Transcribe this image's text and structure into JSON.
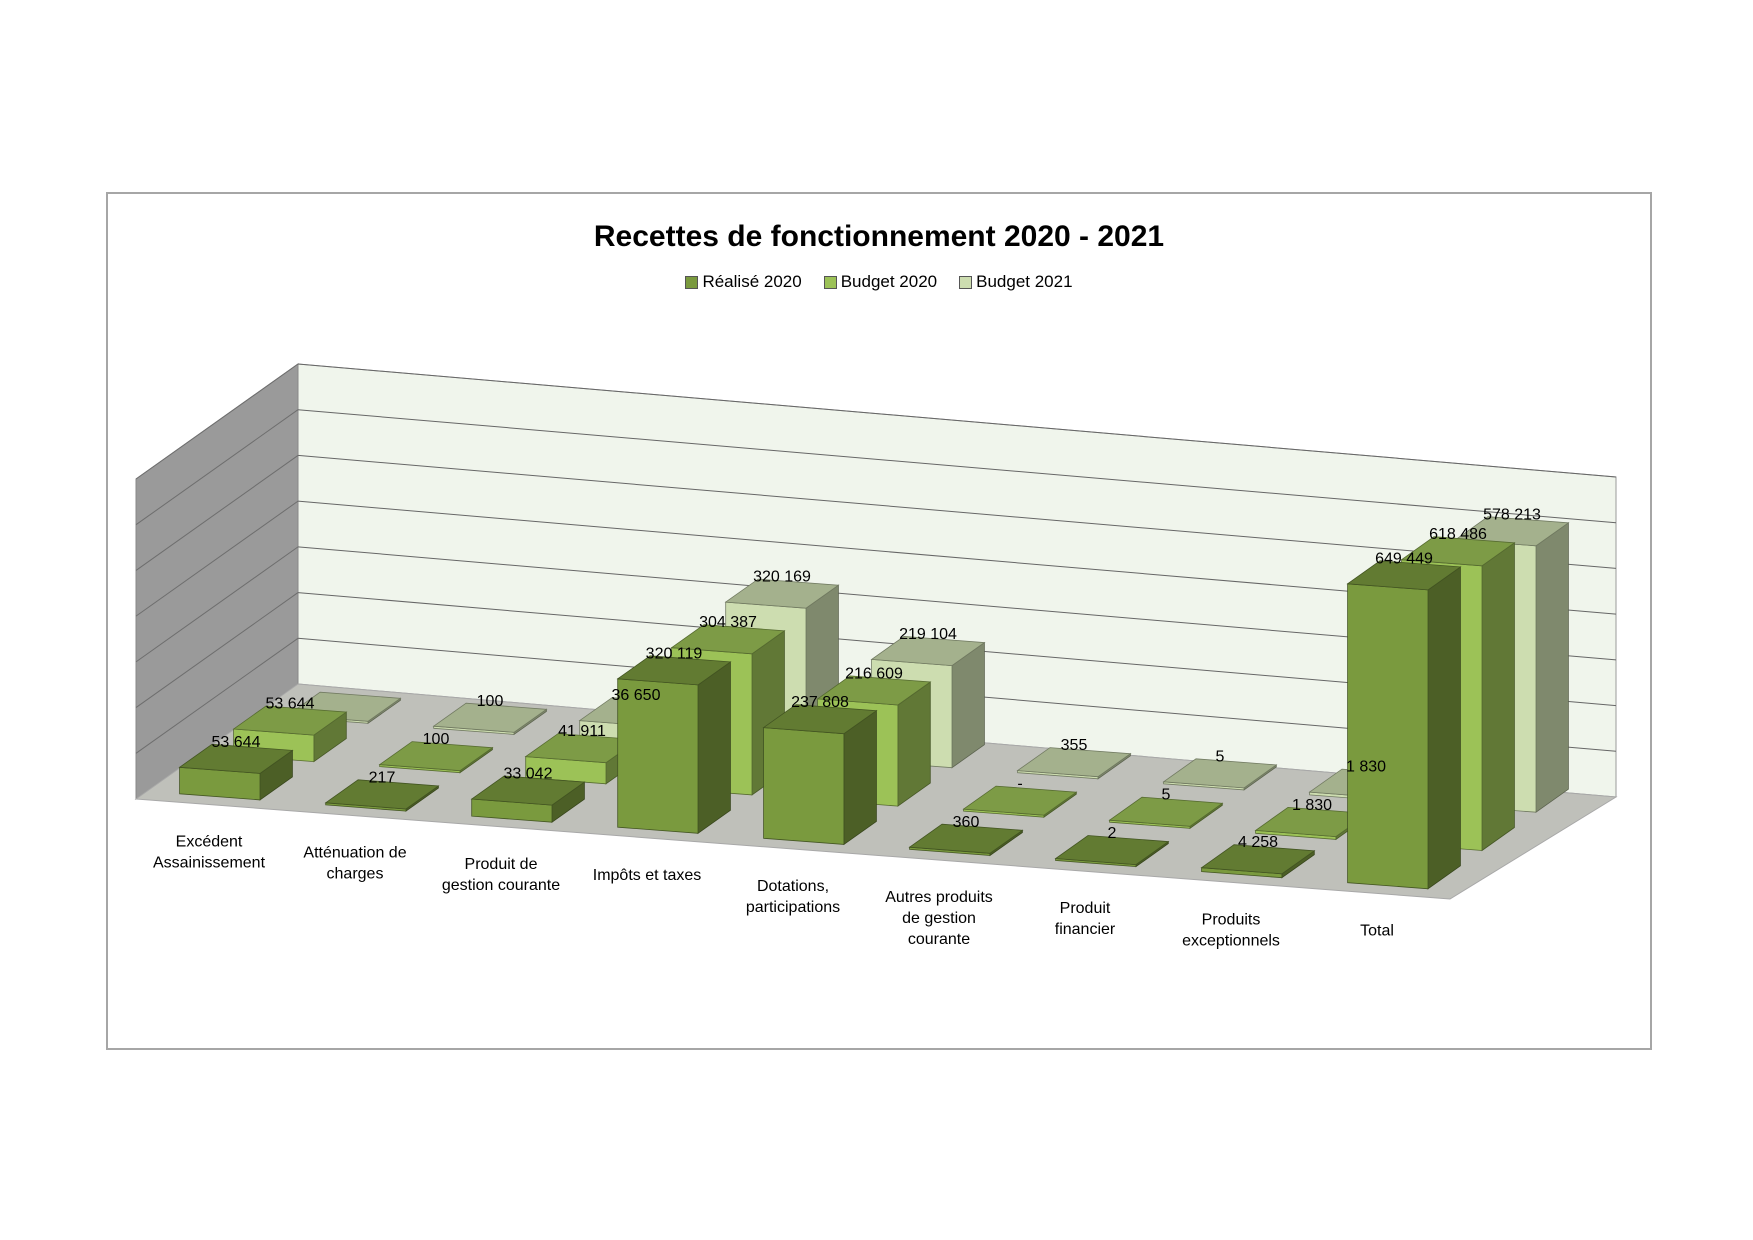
{
  "chart_data": {
    "type": "bar",
    "title": "Recettes de fonctionnement 2020 - 2021",
    "legend_position": "top",
    "grid": true,
    "three_d": true,
    "categories": [
      "Excédent Assainissement",
      "Atténuation de charges",
      "Produit de gestion courante",
      "Impôts et taxes",
      "Dotations, participations",
      "Autres produits de gestion courante",
      "Produit financier",
      "Produits exceptionnels",
      "Total"
    ],
    "series": [
      {
        "name": "Réalisé 2020",
        "color": "#7a9a3e",
        "values": [
          53644,
          217,
          33042,
          320119,
          237808,
          360,
          2,
          4258,
          649449
        ],
        "labels": [
          "53 644",
          "217",
          "33 042",
          "320 119",
          "237 808",
          "360",
          "2",
          "4 258",
          "649 449"
        ]
      },
      {
        "name": "Budget 2020",
        "color": "#9cc257",
        "values": [
          53644,
          100,
          41911,
          304387,
          216609,
          0,
          5,
          1830,
          618486
        ],
        "labels": [
          "53 644",
          "100",
          "41 911",
          "304 387",
          "216 609",
          "-",
          "5",
          "1 830",
          "618 486"
        ]
      },
      {
        "name": "Budget 2021",
        "color": "#cdddb0",
        "values": [
          0,
          100,
          36650,
          320169,
          219104,
          355,
          5,
          1830,
          578213
        ],
        "labels": [
          "",
          "100",
          "36 650",
          "320 169",
          "219 104",
          "355",
          "5",
          "1 830",
          "578 213"
        ]
      }
    ]
  }
}
